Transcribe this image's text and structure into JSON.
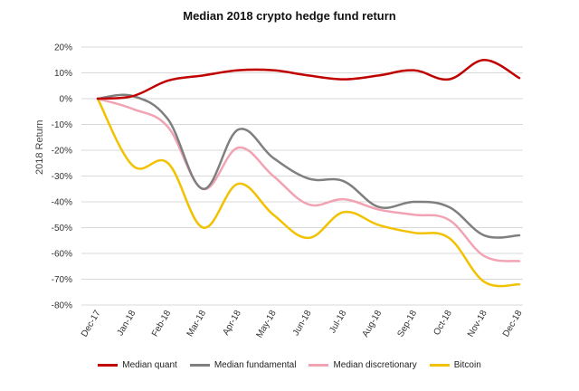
{
  "chart_data": {
    "type": "line",
    "title": "Median 2018 crypto hedge fund return",
    "xlabel": "",
    "ylabel": "2018 Return",
    "categories": [
      "Dec-17",
      "Jan-18",
      "Feb-18",
      "Mar-18",
      "Apr-18",
      "May-18",
      "Jun-18",
      "Jul-18",
      "Aug-18",
      "Sep-18",
      "Oct-18",
      "Nov-18",
      "Dec-18"
    ],
    "y_ticks": [
      "20%",
      "10%",
      "0%",
      "-10%",
      "-20%",
      "-30%",
      "-40%",
      "-50%",
      "-60%",
      "-70%",
      "-80%"
    ],
    "ylim": [
      -80,
      20
    ],
    "grid": true,
    "legend_position": "bottom",
    "series": [
      {
        "name": "Median quant",
        "color": "#c00000",
        "values": [
          0,
          1,
          7,
          9,
          11,
          11,
          9,
          7.5,
          9,
          11,
          7.5,
          15,
          8
        ]
      },
      {
        "name": "Median fundamental",
        "color": "#7f7f7f",
        "values": [
          0,
          1,
          -8,
          -35,
          -12,
          -23,
          -31,
          -32,
          -42,
          -40,
          -42,
          -53,
          -53
        ]
      },
      {
        "name": "Median discretionary",
        "color": "#f2a3b3",
        "values": [
          0,
          -4,
          -11,
          -35,
          -19,
          -30,
          -41,
          -39,
          -43,
          -45,
          -47,
          -61,
          -63
        ]
      },
      {
        "name": "Bitcoin",
        "color": "#f2c100",
        "values": [
          0,
          -26,
          -25,
          -50,
          -33,
          -45,
          -54,
          -44,
          -49,
          -52,
          -54,
          -71,
          -72
        ]
      }
    ]
  }
}
